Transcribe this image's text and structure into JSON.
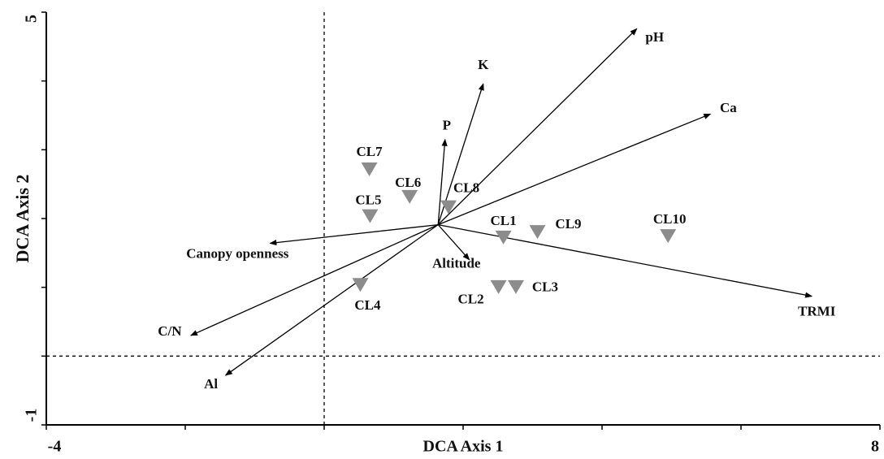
{
  "chart_data": {
    "type": "biplot",
    "xlabel": "DCA Axis 1",
    "ylabel": "DCA Axis 2",
    "xlim": [
      -4,
      8
    ],
    "ylim": [
      -1,
      5
    ],
    "xticks": [
      -4,
      8
    ],
    "yticks": [
      -1,
      5
    ],
    "xminor_ticks": [
      -2,
      0,
      2,
      4,
      6
    ],
    "yminor_ticks": [
      0,
      1,
      2,
      3,
      4
    ],
    "reference_lines": {
      "x": 0,
      "y": 0
    },
    "arrow_origin": [
      1.64,
      1.91
    ],
    "arrows": [
      {
        "name": "pH",
        "x": 4.5,
        "y": 4.76
      },
      {
        "name": "K",
        "x": 2.29,
        "y": 3.96
      },
      {
        "name": "P",
        "x": 1.74,
        "y": 3.15
      },
      {
        "name": "Ca",
        "x": 5.56,
        "y": 3.52
      },
      {
        "name": "TRMI",
        "x": 7.02,
        "y": 0.87
      },
      {
        "name": "Altitude",
        "x": 2.09,
        "y": 1.4
      },
      {
        "name": "Canopy openness",
        "x": -0.78,
        "y": 1.64
      },
      {
        "name": "C/N",
        "x": -1.92,
        "y": 0.3
      },
      {
        "name": "Al",
        "x": -1.42,
        "y": -0.28
      }
    ],
    "sites": [
      {
        "name": "CL7",
        "x": 0.65,
        "y": 2.72
      },
      {
        "name": "CL6",
        "x": 1.23,
        "y": 2.32
      },
      {
        "name": "CL5",
        "x": 0.66,
        "y": 2.04
      },
      {
        "name": "CL8",
        "x": 1.79,
        "y": 2.17
      },
      {
        "name": "CL1",
        "x": 2.58,
        "y": 1.73
      },
      {
        "name": "CL9",
        "x": 3.07,
        "y": 1.81
      },
      {
        "name": "CL10",
        "x": 4.95,
        "y": 1.75
      },
      {
        "name": "CL4",
        "x": 0.52,
        "y": 1.04
      },
      {
        "name": "CL2",
        "x": 2.51,
        "y": 1.01
      },
      {
        "name": "CL3",
        "x": 2.76,
        "y": 1.01
      }
    ],
    "site_color": "#8c8c8c",
    "arrow_color": "#000000"
  }
}
